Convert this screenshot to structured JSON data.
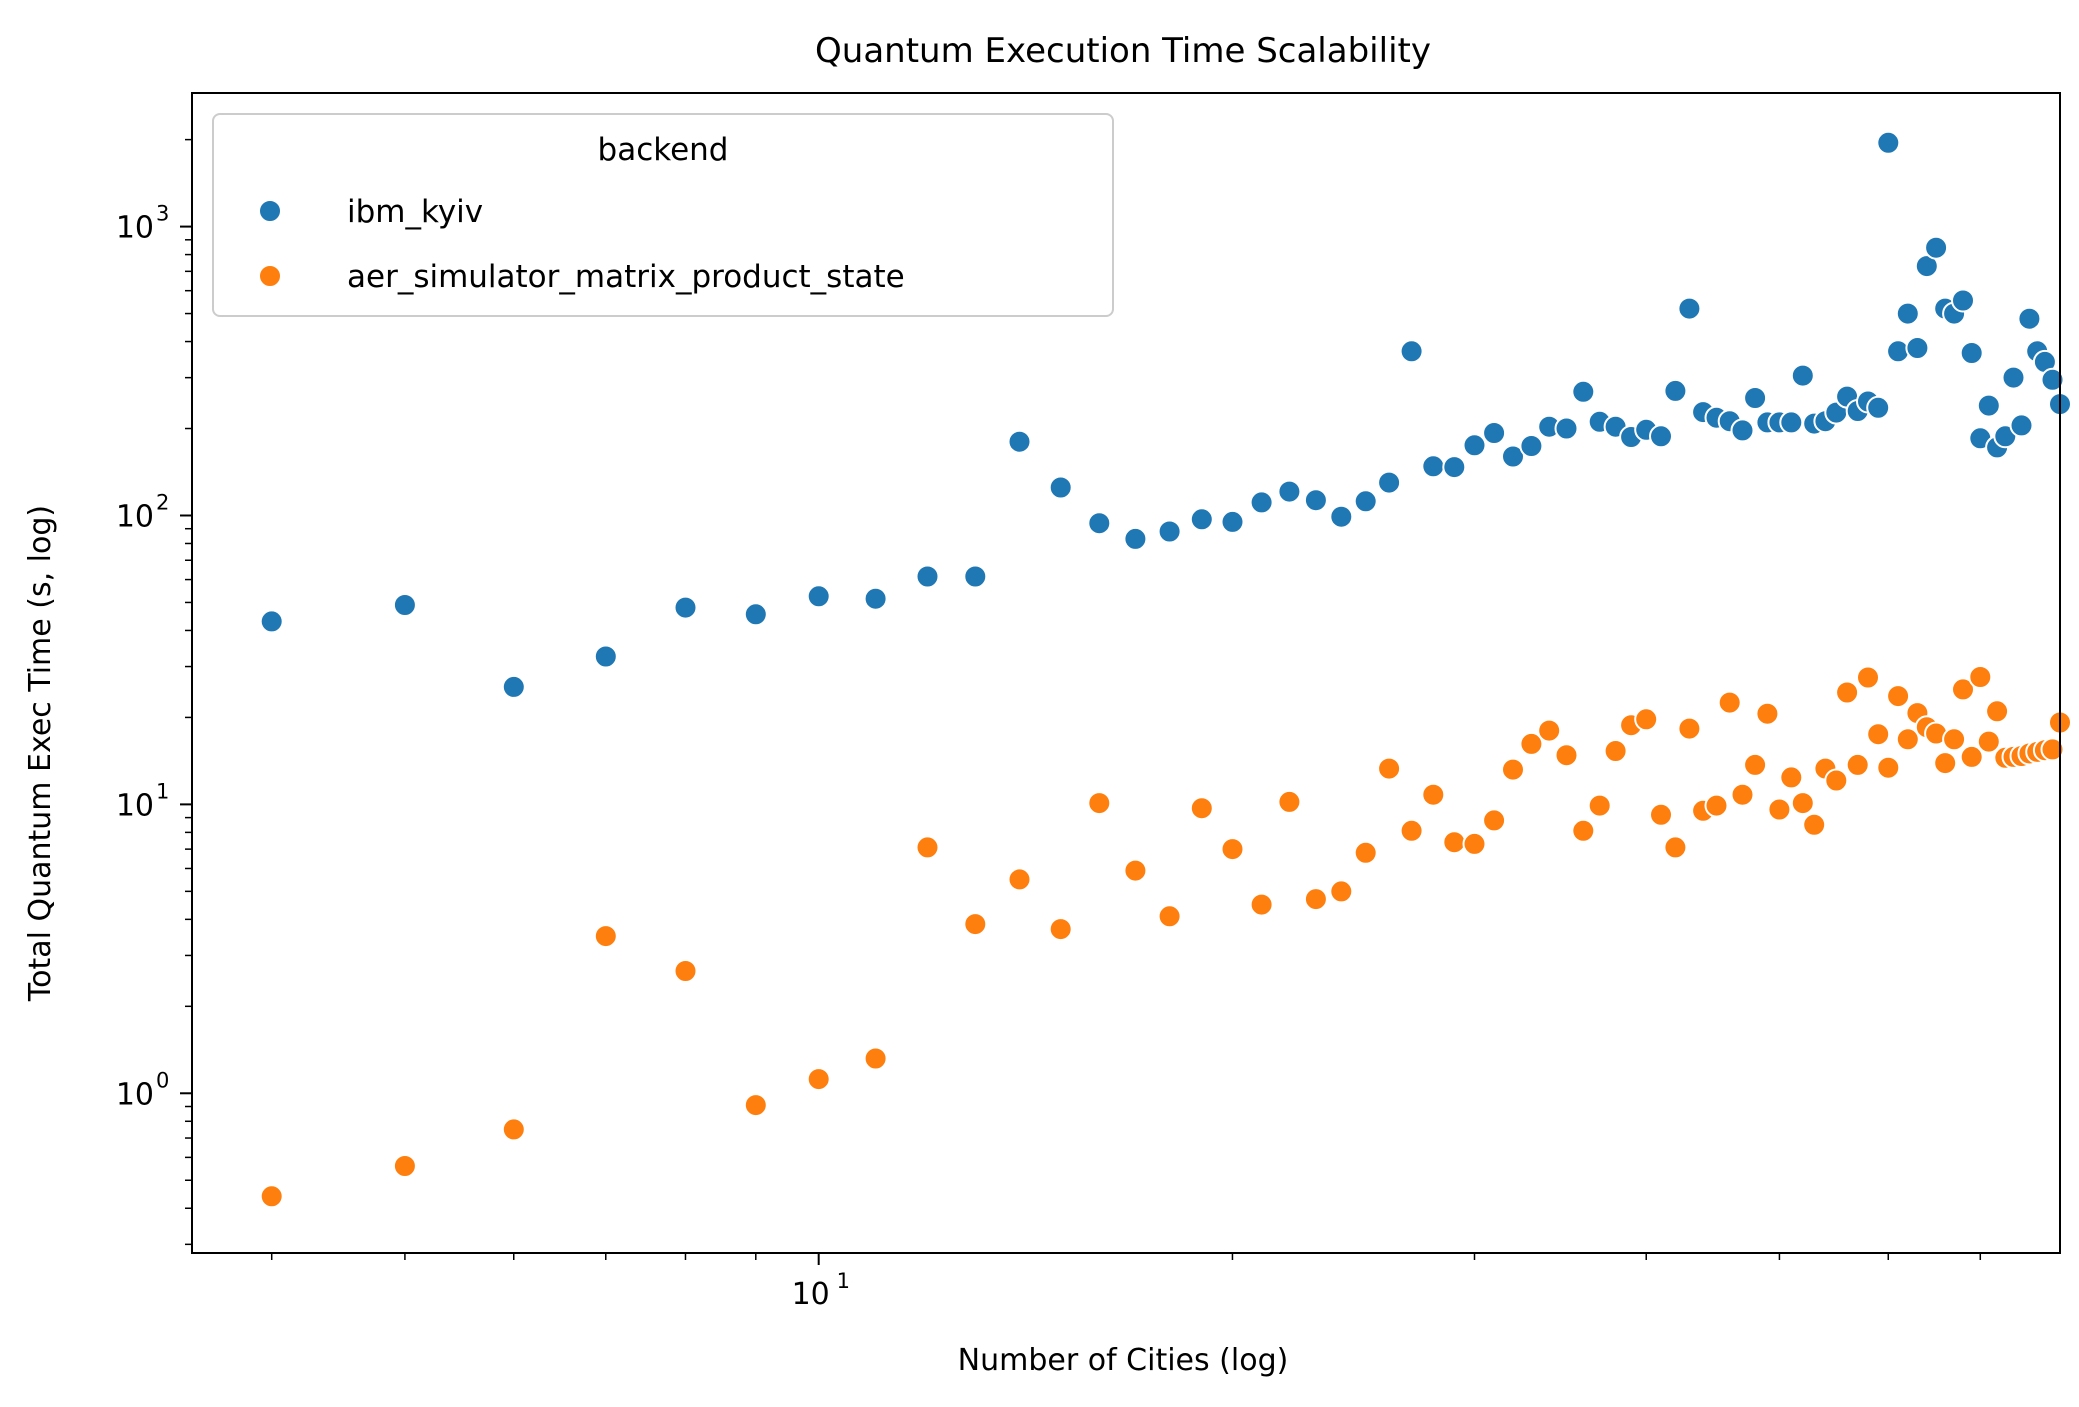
{
  "chart_data": {
    "type": "scatter",
    "title": "Quantum Execution Time Scalability",
    "xlabel": "Number of Cities (log)",
    "ylabel": "Total Quantum Exec Time (s, log)",
    "xscale": "log",
    "yscale": "log",
    "xlim": [
      3.5,
      80
    ],
    "ylim": [
      0.28,
      2900
    ],
    "xticks_major": [
      {
        "value": 10,
        "base": "10",
        "exp": "1"
      }
    ],
    "xticks_minor": [
      4,
      5,
      6,
      7,
      8,
      9,
      20,
      30,
      40,
      50,
      60,
      70
    ],
    "yticks_major": [
      {
        "value": 1,
        "base": "10",
        "exp": "0"
      },
      {
        "value": 10,
        "base": "10",
        "exp": "1"
      },
      {
        "value": 100,
        "base": "10",
        "exp": "2"
      },
      {
        "value": 1000,
        "base": "10",
        "exp": "3"
      }
    ],
    "yticks_minor": [
      0.3,
      0.4,
      0.5,
      0.6,
      0.7,
      0.8,
      0.9,
      2,
      3,
      4,
      5,
      6,
      7,
      8,
      9,
      20,
      30,
      40,
      50,
      60,
      70,
      80,
      90,
      200,
      300,
      400,
      500,
      600,
      700,
      800,
      900,
      2000
    ],
    "legend": {
      "title": "backend",
      "location": "upper left"
    },
    "series": [
      {
        "name": "ibm_kyiv",
        "color": "#1f77b4",
        "points": [
          [
            4,
            43
          ],
          [
            5,
            49
          ],
          [
            6,
            25.5
          ],
          [
            7,
            32.5
          ],
          [
            8,
            48
          ],
          [
            9,
            45.5
          ],
          [
            10,
            52.5
          ],
          [
            11,
            51.5
          ],
          [
            12,
            61.5
          ],
          [
            13,
            61.5
          ],
          [
            14,
            180
          ],
          [
            15,
            125
          ],
          [
            16,
            94
          ],
          [
            17,
            83
          ],
          [
            18,
            88
          ],
          [
            19,
            97
          ],
          [
            20,
            95
          ],
          [
            21,
            111
          ],
          [
            22,
            121
          ],
          [
            23,
            113
          ],
          [
            24,
            99
          ],
          [
            25,
            112
          ],
          [
            26,
            130
          ],
          [
            27,
            370
          ],
          [
            28,
            148
          ],
          [
            29,
            147
          ],
          [
            30,
            175
          ],
          [
            31,
            193
          ],
          [
            32,
            160
          ],
          [
            33,
            174
          ],
          [
            34,
            203
          ],
          [
            35,
            200
          ],
          [
            36,
            268
          ],
          [
            37,
            211
          ],
          [
            38,
            203
          ],
          [
            39,
            187
          ],
          [
            40,
            198
          ],
          [
            41,
            188
          ],
          [
            42,
            270
          ],
          [
            43,
            520
          ],
          [
            44,
            228
          ],
          [
            45,
            218
          ],
          [
            46,
            212
          ],
          [
            47,
            197
          ],
          [
            48,
            255
          ],
          [
            49,
            210
          ],
          [
            50,
            210
          ],
          [
            51,
            210
          ],
          [
            52,
            305
          ],
          [
            53,
            208
          ],
          [
            54,
            212
          ],
          [
            55,
            227
          ],
          [
            56,
            258
          ],
          [
            57,
            230
          ],
          [
            58,
            248
          ],
          [
            59,
            236
          ],
          [
            60,
            1950
          ],
          [
            61,
            370
          ],
          [
            62,
            500
          ],
          [
            63,
            380
          ],
          [
            64,
            730
          ],
          [
            65,
            845
          ],
          [
            66,
            520
          ],
          [
            67,
            500
          ],
          [
            68,
            555
          ],
          [
            69,
            365
          ],
          [
            70,
            185
          ],
          [
            71,
            240
          ],
          [
            72,
            172
          ],
          [
            73,
            188
          ],
          [
            74,
            300
          ],
          [
            75,
            205
          ],
          [
            76,
            480
          ],
          [
            77,
            370
          ],
          [
            78,
            340
          ],
          [
            79,
            295
          ],
          [
            80,
            243
          ]
        ]
      },
      {
        "name": "aer_simulator_matrix_product_state",
        "color": "#ff7f0e",
        "points": [
          [
            4,
            0.44
          ],
          [
            5,
            0.56
          ],
          [
            6,
            0.75
          ],
          [
            7,
            3.5
          ],
          [
            8,
            2.65
          ],
          [
            9,
            0.91
          ],
          [
            10,
            1.12
          ],
          [
            11,
            1.32
          ],
          [
            12,
            7.1
          ],
          [
            13,
            3.85
          ],
          [
            14,
            5.5
          ],
          [
            15,
            3.7
          ],
          [
            16,
            10.1
          ],
          [
            17,
            5.9
          ],
          [
            18,
            4.1
          ],
          [
            19,
            9.7
          ],
          [
            20,
            7.0
          ],
          [
            21,
            4.5
          ],
          [
            22,
            10.2
          ],
          [
            23,
            4.7
          ],
          [
            24,
            5.0
          ],
          [
            25,
            6.8
          ],
          [
            26,
            13.3
          ],
          [
            27,
            8.1
          ],
          [
            28,
            10.8
          ],
          [
            29,
            7.4
          ],
          [
            30,
            7.3
          ],
          [
            31,
            8.8
          ],
          [
            32,
            13.2
          ],
          [
            33,
            16.2
          ],
          [
            34,
            18.0
          ],
          [
            35,
            14.8
          ],
          [
            36,
            8.1
          ],
          [
            37,
            9.9
          ],
          [
            38,
            15.3
          ],
          [
            39,
            18.8
          ],
          [
            40,
            19.7
          ],
          [
            41,
            9.2
          ],
          [
            42,
            7.1
          ],
          [
            43,
            18.3
          ],
          [
            44,
            9.5
          ],
          [
            45,
            9.9
          ],
          [
            46,
            22.5
          ],
          [
            47,
            10.8
          ],
          [
            48,
            13.7
          ],
          [
            49,
            20.6
          ],
          [
            50,
            9.6
          ],
          [
            51,
            12.4
          ],
          [
            52,
            10.1
          ],
          [
            53,
            8.5
          ],
          [
            54,
            13.3
          ],
          [
            55,
            12.1
          ],
          [
            56,
            24.4
          ],
          [
            57,
            13.7
          ],
          [
            58,
            27.5
          ],
          [
            59,
            17.5
          ],
          [
            60,
            13.4
          ],
          [
            61,
            23.7
          ],
          [
            62,
            16.8
          ],
          [
            63,
            20.7
          ],
          [
            64,
            18.5
          ],
          [
            65,
            17.6
          ],
          [
            66,
            13.9
          ],
          [
            67,
            16.8
          ],
          [
            68,
            25.0
          ],
          [
            69,
            14.6
          ],
          [
            70,
            27.6
          ],
          [
            71,
            16.5
          ],
          [
            72,
            21.0
          ],
          [
            73,
            14.5
          ],
          [
            74,
            14.6
          ],
          [
            75,
            14.7
          ],
          [
            76,
            15.0
          ],
          [
            77,
            15.2
          ],
          [
            78,
            15.4
          ],
          [
            79,
            15.5
          ],
          [
            80,
            19.2
          ]
        ]
      }
    ]
  }
}
